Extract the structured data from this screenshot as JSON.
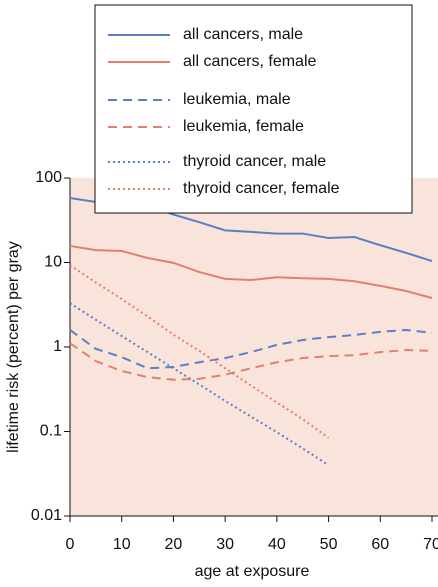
{
  "chart_data": {
    "type": "line",
    "x_label": "age at exposure",
    "y_label": "lifetime risk (percent) per gray",
    "x": [
      0,
      5,
      10,
      15,
      20,
      25,
      30,
      35,
      40,
      45,
      50,
      55,
      60,
      65,
      70
    ],
    "xlim": [
      0,
      70
    ],
    "xticks": [
      0,
      10,
      20,
      30,
      40,
      50,
      60,
      70
    ],
    "ylim": [
      0.01,
      100
    ],
    "yticks": [
      0.01,
      0.1,
      1,
      10,
      100
    ],
    "log_y": true,
    "grid": false,
    "background": "#f9e4dc",
    "legend": "top",
    "series": [
      {
        "name": "all cancers, male",
        "color": "#5b7fc4",
        "style": "solid",
        "values": [
          58,
          52,
          49,
          47,
          37,
          30,
          24,
          23,
          22,
          22,
          19.5,
          20,
          16,
          13,
          10.4
        ]
      },
      {
        "name": "all cancers, female",
        "color": "#e0826a",
        "style": "solid",
        "values": [
          15.7,
          14,
          13.7,
          11.3,
          9.9,
          7.7,
          6.4,
          6.2,
          6.7,
          6.5,
          6.4,
          6.0,
          5.3,
          4.6,
          3.8
        ]
      },
      {
        "name": "leukemia, male",
        "color": "#5b7fc4",
        "style": "dashed",
        "values": [
          1.59,
          0.95,
          0.76,
          0.56,
          0.58,
          0.66,
          0.74,
          0.87,
          1.06,
          1.21,
          1.31,
          1.39,
          1.51,
          1.59,
          1.47
        ]
      },
      {
        "name": "leukemia, female",
        "color": "#e0826a",
        "style": "dashed",
        "values": [
          1.11,
          0.68,
          0.52,
          0.44,
          0.41,
          0.42,
          0.47,
          0.56,
          0.66,
          0.74,
          0.78,
          0.8,
          0.87,
          0.92,
          0.9
        ]
      },
      {
        "name": "thyroid cancer, male",
        "color": "#5b7fc4",
        "style": "dotted",
        "values": [
          3.3,
          2.1,
          1.35,
          0.87,
          0.56,
          0.36,
          0.23,
          0.15,
          0.098,
          0.063,
          0.04,
          null,
          null,
          null,
          null
        ]
      },
      {
        "name": "thyroid cancer, female",
        "color": "#e0826a",
        "style": "dotted",
        "values": [
          9.3,
          5.8,
          3.7,
          2.3,
          1.4,
          0.9,
          0.56,
          0.35,
          0.22,
          0.14,
          0.084,
          null,
          null,
          null,
          null
        ]
      }
    ]
  }
}
